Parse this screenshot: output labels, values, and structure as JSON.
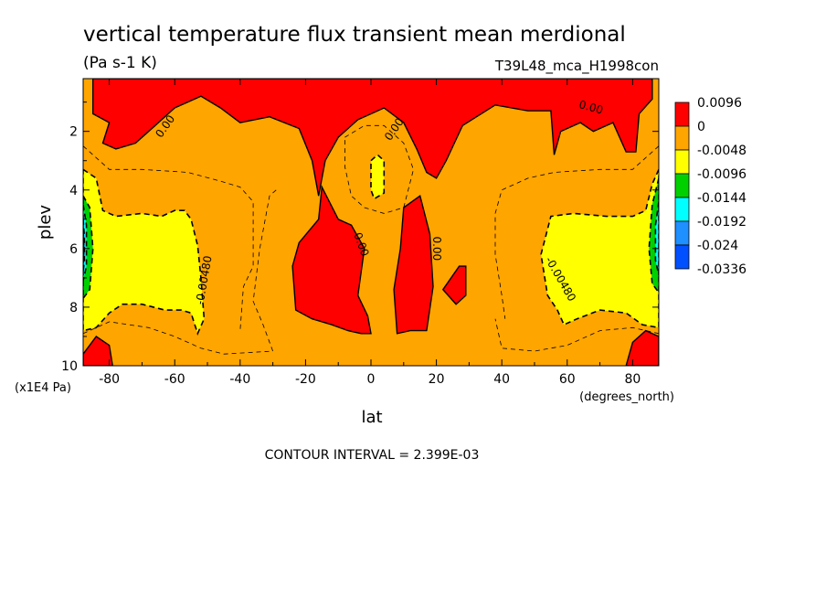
{
  "title": "vertical temperature flux transient mean merdional",
  "units": "(Pa s-1 K)",
  "dataset": "T39L48_mca_H1998con",
  "footer": "CONTOUR INTERVAL = 2.399E-03",
  "colors": {
    "red": "#ff0000",
    "orange": "#ffa500",
    "yellow": "#ffff00",
    "green": "#00d000",
    "cyan": "#00ffff",
    "blue": "#1e90ff",
    "deepblue": "#0050ff",
    "navy": "#1e3cc8"
  },
  "chart_data": {
    "type": "heatmap",
    "title": "vertical temperature flux transient mean merdional",
    "subtitle": "(Pa s-1 K)",
    "xlabel": "lat",
    "xunits": "(degrees_north)",
    "ylabel": "plev",
    "yunits": "(x1E4 Pa)",
    "xlim": [
      -88,
      88
    ],
    "ylim": [
      10,
      0.2
    ],
    "x_ticks": [
      -80,
      -60,
      -40,
      -20,
      0,
      20,
      40,
      60,
      80
    ],
    "x_tick_labels": [
      "-80",
      "-60",
      "-40",
      "-20",
      "0",
      "20",
      "40",
      "60",
      "80"
    ],
    "y_ticks": [
      2,
      4,
      6,
      8,
      10
    ],
    "y_tick_labels": [
      "2",
      "4",
      "6",
      "8",
      "10"
    ],
    "contour_interval": 0.002399,
    "legend": {
      "placement": "right",
      "labels": [
        "0.0096",
        "0",
        "-0.0048",
        "-0.0096",
        "-0.0144",
        "-0.0192",
        "-0.024",
        "-0.0336"
      ],
      "colors": [
        "red",
        "orange",
        "yellow",
        "green",
        "cyan",
        "blue",
        "deepblue"
      ]
    },
    "contour_labels": [
      {
        "text": "0.00",
        "lat": -62,
        "plev": 1.9
      },
      {
        "text": "0.00",
        "lat": 8,
        "plev": 2.0
      },
      {
        "text": "0.00",
        "lat": 67,
        "plev": 1.3
      },
      {
        "text": "0.00",
        "lat": -4,
        "plev": 5.9
      },
      {
        "text": "0.00",
        "lat": 19,
        "plev": 6.0
      },
      {
        "text": "-0.00480",
        "lat": -50,
        "plev": 7.1
      },
      {
        "text": "-0.00480",
        "lat": 57,
        "plev": 7.1
      }
    ],
    "regions": [
      {
        "color": "orange",
        "outline": "none",
        "points": [
          [
            -88,
            0.2
          ],
          [
            88,
            0.2
          ],
          [
            88,
            10
          ],
          [
            -88,
            10
          ]
        ]
      },
      {
        "color": "red",
        "outline": "solid",
        "points": [
          [
            -85,
            0.2
          ],
          [
            86,
            0.2
          ],
          [
            86,
            0.9
          ],
          [
            82,
            1.4
          ],
          [
            81,
            2.7
          ],
          [
            78,
            2.7
          ],
          [
            74,
            1.7
          ],
          [
            68,
            2.0
          ],
          [
            64,
            1.7
          ],
          [
            58,
            2.0
          ],
          [
            56,
            2.8
          ],
          [
            55,
            1.3
          ],
          [
            48,
            1.3
          ],
          [
            38,
            1.1
          ],
          [
            28,
            1.8
          ],
          [
            23,
            3.0
          ],
          [
            20,
            3.6
          ],
          [
            17,
            3.4
          ],
          [
            14,
            2.6
          ],
          [
            10,
            1.7
          ],
          [
            4,
            1.2
          ],
          [
            -4,
            1.6
          ],
          [
            -10,
            2.2
          ],
          [
            -14,
            3.0
          ],
          [
            -16,
            4.2
          ],
          [
            -18,
            3.0
          ],
          [
            -22,
            1.9
          ],
          [
            -31,
            1.5
          ],
          [
            -40,
            1.7
          ],
          [
            -46,
            1.2
          ],
          [
            -52,
            0.8
          ],
          [
            -60,
            1.2
          ],
          [
            -66,
            1.8
          ],
          [
            -72,
            2.4
          ],
          [
            -78,
            2.6
          ],
          [
            -82,
            2.4
          ],
          [
            -80,
            1.7
          ],
          [
            -85,
            1.4
          ]
        ]
      },
      {
        "color": "red",
        "outline": "solid",
        "points": [
          [
            -16,
            5.0
          ],
          [
            -15,
            3.9
          ],
          [
            -10,
            5.0
          ],
          [
            -6,
            5.2
          ],
          [
            -2,
            6.0
          ],
          [
            -4,
            7.6
          ],
          [
            -1,
            8.3
          ],
          [
            0,
            8.9
          ],
          [
            -3,
            8.9
          ],
          [
            -7,
            8.8
          ],
          [
            -12,
            8.6
          ],
          [
            -18,
            8.4
          ],
          [
            -23,
            8.1
          ],
          [
            -24,
            6.6
          ],
          [
            -22,
            5.8
          ]
        ]
      },
      {
        "color": "red",
        "outline": "solid",
        "points": [
          [
            8,
            8.9
          ],
          [
            7,
            7.4
          ],
          [
            9,
            6.0
          ],
          [
            10,
            4.6
          ],
          [
            15,
            4.2
          ],
          [
            18,
            5.5
          ],
          [
            19,
            7.3
          ],
          [
            17,
            8.8
          ],
          [
            12,
            8.8
          ]
        ]
      },
      {
        "color": "red",
        "outline": "solid",
        "points": [
          [
            22,
            7.4
          ],
          [
            27,
            6.6
          ],
          [
            29,
            6.6
          ],
          [
            29,
            7.6
          ],
          [
            26,
            7.9
          ]
        ]
      },
      {
        "color": "red",
        "outline": "solid",
        "points": [
          [
            -88,
            10
          ],
          [
            -88,
            9.6
          ],
          [
            -84,
            9.0
          ],
          [
            -80,
            9.3
          ],
          [
            -79,
            10
          ]
        ]
      },
      {
        "color": "red",
        "outline": "solid",
        "points": [
          [
            88,
            10
          ],
          [
            88,
            9.0
          ],
          [
            84,
            8.8
          ],
          [
            80,
            9.2
          ],
          [
            78,
            10
          ]
        ]
      },
      {
        "color": "yellow",
        "outline": "dashed",
        "points": [
          [
            -88,
            3.3
          ],
          [
            -84,
            3.6
          ],
          [
            -82,
            4.7
          ],
          [
            -78,
            4.9
          ],
          [
            -70,
            4.8
          ],
          [
            -64,
            4.9
          ],
          [
            -60,
            4.7
          ],
          [
            -57,
            4.7
          ],
          [
            -55,
            5.0
          ],
          [
            -53,
            5.9
          ],
          [
            -52,
            7.0
          ],
          [
            -51,
            8.4
          ],
          [
            -53,
            8.9
          ],
          [
            -55,
            8.2
          ],
          [
            -58,
            8.1
          ],
          [
            -63,
            8.1
          ],
          [
            -70,
            7.9
          ],
          [
            -76,
            7.9
          ],
          [
            -80,
            8.2
          ],
          [
            -84,
            8.7
          ],
          [
            -88,
            8.8
          ]
        ]
      },
      {
        "color": "yellow",
        "outline": "dashed",
        "points": [
          [
            88,
            3.3
          ],
          [
            86,
            3.8
          ],
          [
            84,
            4.7
          ],
          [
            80,
            4.9
          ],
          [
            72,
            4.9
          ],
          [
            62,
            4.8
          ],
          [
            55,
            4.9
          ],
          [
            52,
            6.2
          ],
          [
            54,
            7.6
          ],
          [
            57,
            8.1
          ],
          [
            59,
            8.6
          ],
          [
            63,
            8.4
          ],
          [
            70,
            8.1
          ],
          [
            78,
            8.2
          ],
          [
            83,
            8.6
          ],
          [
            88,
            8.7
          ]
        ]
      },
      {
        "color": "yellow",
        "outline": "dashed",
        "points": [
          [
            0,
            3.0
          ],
          [
            2,
            2.8
          ],
          [
            4,
            3.0
          ],
          [
            4,
            4.1
          ],
          [
            1,
            4.3
          ],
          [
            0,
            4.0
          ]
        ]
      },
      {
        "color": "green",
        "outline": "dashed",
        "points": [
          [
            -88,
            4.2
          ],
          [
            -86,
            4.6
          ],
          [
            -85,
            6.0
          ],
          [
            -86,
            7.4
          ],
          [
            -88,
            7.7
          ]
        ]
      },
      {
        "color": "green",
        "outline": "dashed",
        "points": [
          [
            88,
            3.6
          ],
          [
            86,
            4.5
          ],
          [
            85,
            6.0
          ],
          [
            86,
            7.2
          ],
          [
            88,
            7.5
          ]
        ]
      },
      {
        "color": "cyan",
        "outline": "dashed",
        "points": [
          [
            -88,
            4.5
          ],
          [
            -87,
            5.2
          ],
          [
            -87,
            6.6
          ],
          [
            -88,
            7.1
          ]
        ]
      },
      {
        "color": "cyan",
        "outline": "dashed",
        "points": [
          [
            88,
            4.4
          ],
          [
            87,
            5.2
          ],
          [
            87,
            6.4
          ],
          [
            88,
            6.9
          ]
        ]
      },
      {
        "color": "blue",
        "outline": "dashed",
        "points": [
          [
            -88,
            5.0
          ],
          [
            -87.6,
            5.6
          ],
          [
            -87.6,
            6.4
          ],
          [
            -88,
            6.8
          ]
        ]
      },
      {
        "color": "deepblue",
        "outline": "dashed",
        "points": [
          [
            -88,
            5.4
          ],
          [
            -87.8,
            5.9
          ],
          [
            -87.8,
            6.2
          ],
          [
            -88,
            6.5
          ]
        ]
      }
    ],
    "thin_dashed_lines": [
      [
        [
          -88,
          2.5
        ],
        [
          -80,
          3.3
        ],
        [
          -70,
          3.3
        ],
        [
          -56,
          3.4
        ],
        [
          -46,
          3.7
        ],
        [
          -40,
          3.9
        ],
        [
          -36,
          4.4
        ],
        [
          -36,
          6.6
        ],
        [
          -39,
          7.3
        ],
        [
          -40,
          8.8
        ]
      ],
      [
        [
          -88,
          8.9
        ],
        [
          -80,
          8.5
        ],
        [
          -68,
          8.7
        ],
        [
          -60,
          9.0
        ],
        [
          -52,
          9.4
        ],
        [
          -45,
          9.6
        ],
        [
          -30,
          9.5
        ]
      ],
      [
        [
          -30,
          9.5
        ],
        [
          -33,
          8.6
        ],
        [
          -36,
          7.8
        ],
        [
          -34,
          6.0
        ],
        [
          -31,
          4.2
        ],
        [
          -29,
          4.0
        ]
      ],
      [
        [
          -8,
          2.2
        ],
        [
          -2,
          1.8
        ],
        [
          4,
          1.8
        ],
        [
          10,
          2.4
        ],
        [
          13,
          3.3
        ],
        [
          10,
          4.6
        ],
        [
          4,
          4.8
        ],
        [
          -2,
          4.6
        ],
        [
          -6,
          4.2
        ],
        [
          -8,
          3.2
        ],
        [
          -8,
          2.2
        ]
      ],
      [
        [
          88,
          2.5
        ],
        [
          80,
          3.3
        ],
        [
          70,
          3.3
        ],
        [
          56,
          3.4
        ],
        [
          48,
          3.6
        ],
        [
          40,
          4.0
        ],
        [
          38,
          4.8
        ],
        [
          38,
          6.2
        ],
        [
          40,
          7.6
        ],
        [
          41,
          8.4
        ]
      ],
      [
        [
          88,
          8.9
        ],
        [
          80,
          8.7
        ],
        [
          70,
          8.8
        ],
        [
          60,
          9.3
        ],
        [
          50,
          9.5
        ],
        [
          40,
          9.4
        ],
        [
          38,
          8.4
        ]
      ]
    ]
  }
}
